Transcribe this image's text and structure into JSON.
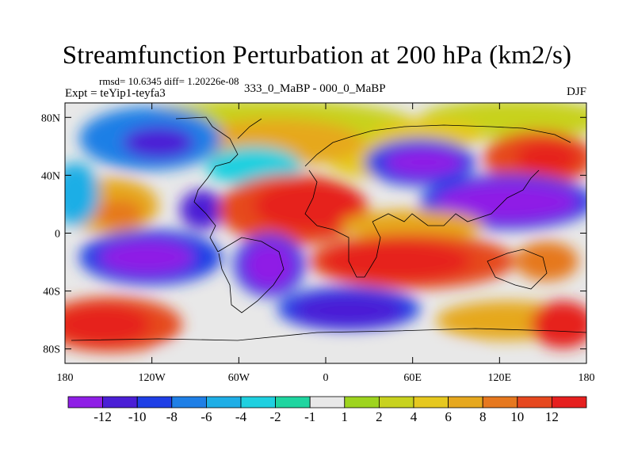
{
  "title": "Streamfunction Perturbation at 200 hPa (km2/s)",
  "stats_line": "rmsd= 10.6345 diff= 1.20226e-08",
  "experiment": "Expt = teYip1-teyfa3",
  "difference_label": "333_0_MaBP - 000_0_MaBP",
  "season": "DJF",
  "map": {
    "lon_range": [
      -180,
      180
    ],
    "lat_range": [
      -90,
      90
    ],
    "lon_ticks": [
      {
        "value": -180,
        "label": "180"
      },
      {
        "value": -120,
        "label": "120W"
      },
      {
        "value": -60,
        "label": "60W"
      },
      {
        "value": 0,
        "label": "0"
      },
      {
        "value": 60,
        "label": "60E"
      },
      {
        "value": 120,
        "label": "120E"
      },
      {
        "value": 180,
        "label": "180"
      }
    ],
    "lat_ticks": [
      {
        "value": 80,
        "label": "80N"
      },
      {
        "value": 40,
        "label": "40N"
      },
      {
        "value": 0,
        "label": "0"
      },
      {
        "value": -40,
        "label": "40S"
      },
      {
        "value": -80,
        "label": "80S"
      }
    ]
  },
  "colorbar": {
    "colors": [
      "#8f1fe6",
      "#4b1fd6",
      "#1f3fe6",
      "#1f7fe6",
      "#1faee6",
      "#1fd0e0",
      "#1fd5a0",
      "#e8e8e8",
      "#9ed41f",
      "#c8d21f",
      "#e6c81f",
      "#e6a81f",
      "#e6781f",
      "#e6481f",
      "#e6201f"
    ],
    "labels": [
      "-12",
      "-10",
      "-8",
      "-6",
      "-4",
      "-2",
      "-1",
      "1",
      "2",
      "4",
      "6",
      "8",
      "10",
      "12"
    ]
  }
}
